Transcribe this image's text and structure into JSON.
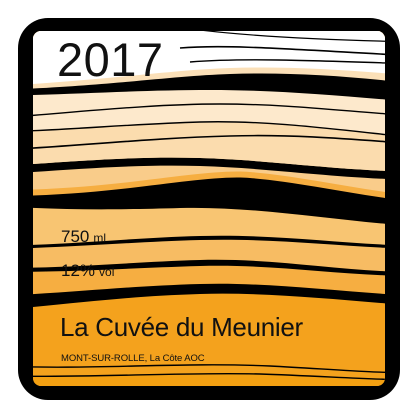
{
  "label": {
    "year": "2017",
    "volume_value": "750",
    "volume_unit": "ml",
    "abv_value": "12%",
    "abv_unit": "vol",
    "wine_name": "La Cuvée du Meunier",
    "appellation": "MONT-SUR-ROLLE, La Côte AOC"
  },
  "colors": {
    "frame": "#000000",
    "top_band": "#ffffff",
    "cream": "#fde9cc",
    "pale_peach": "#fbdcae",
    "light_orange": "#f9cc8a",
    "mid_orange": "#f7bc63",
    "orange": "#f6ae41",
    "deep_orange": "#f4a21d",
    "text": "#111111"
  }
}
